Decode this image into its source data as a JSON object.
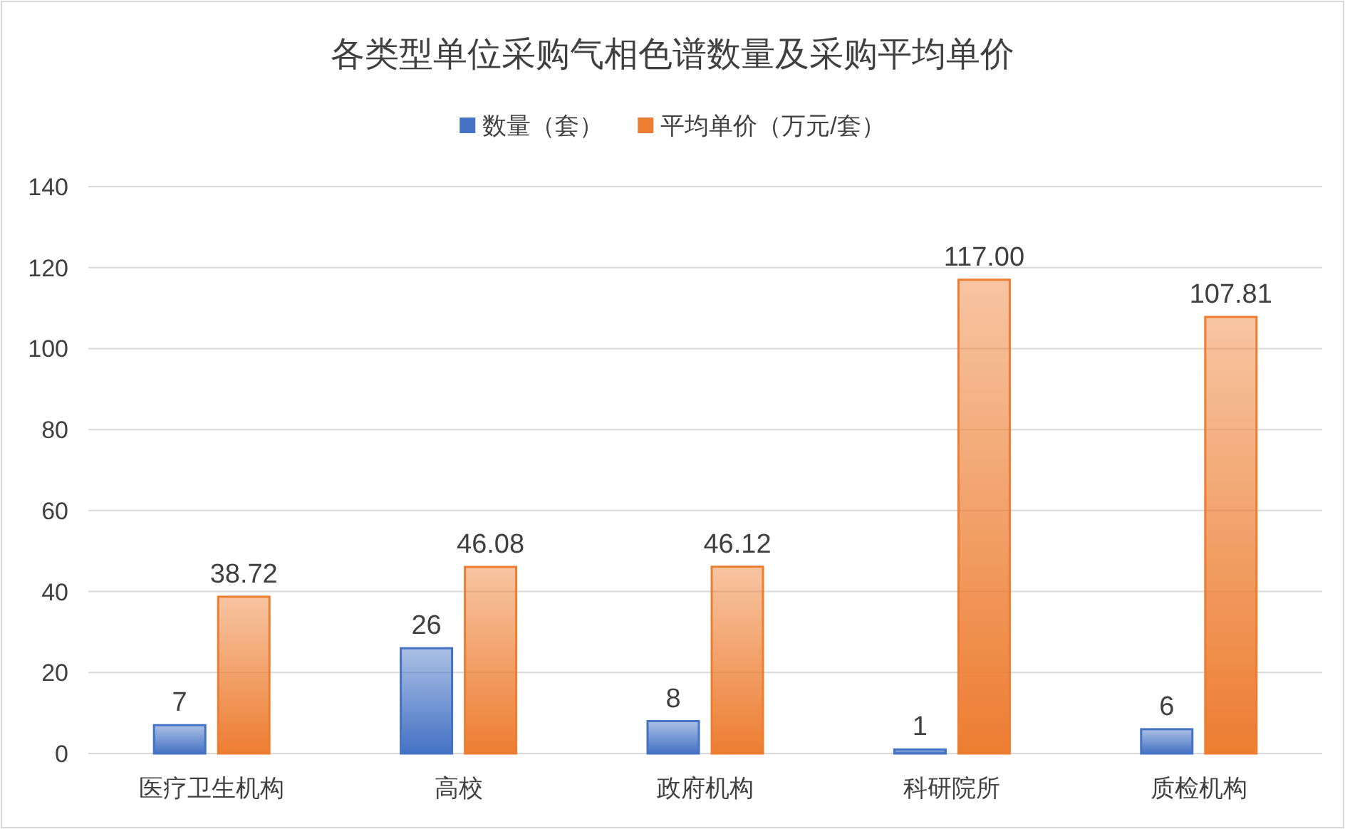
{
  "chart_data": {
    "type": "bar",
    "title": "各类型单位采购气相色谱数量及采购平均单价",
    "categories": [
      "医疗卫生机构",
      "高校",
      "政府机构",
      "科研院所",
      "质检机构"
    ],
    "series": [
      {
        "name": "数量（套）",
        "color": "#4472c4",
        "values": [
          7,
          26,
          8,
          1,
          6
        ],
        "value_labels": [
          "7",
          "26",
          "8",
          "1",
          "6"
        ]
      },
      {
        "name": "平均单价（万元/套）",
        "color": "#ed7d31",
        "values": [
          38.72,
          46.08,
          46.12,
          117,
          107.81
        ],
        "value_labels": [
          "38.72",
          "46.08",
          "46.12",
          "117.00",
          "107.81"
        ]
      }
    ],
    "ylim": [
      0,
      140
    ],
    "yticks": [
      0,
      20,
      40,
      60,
      80,
      100,
      120,
      140
    ],
    "grid": "y",
    "legend": "top"
  }
}
